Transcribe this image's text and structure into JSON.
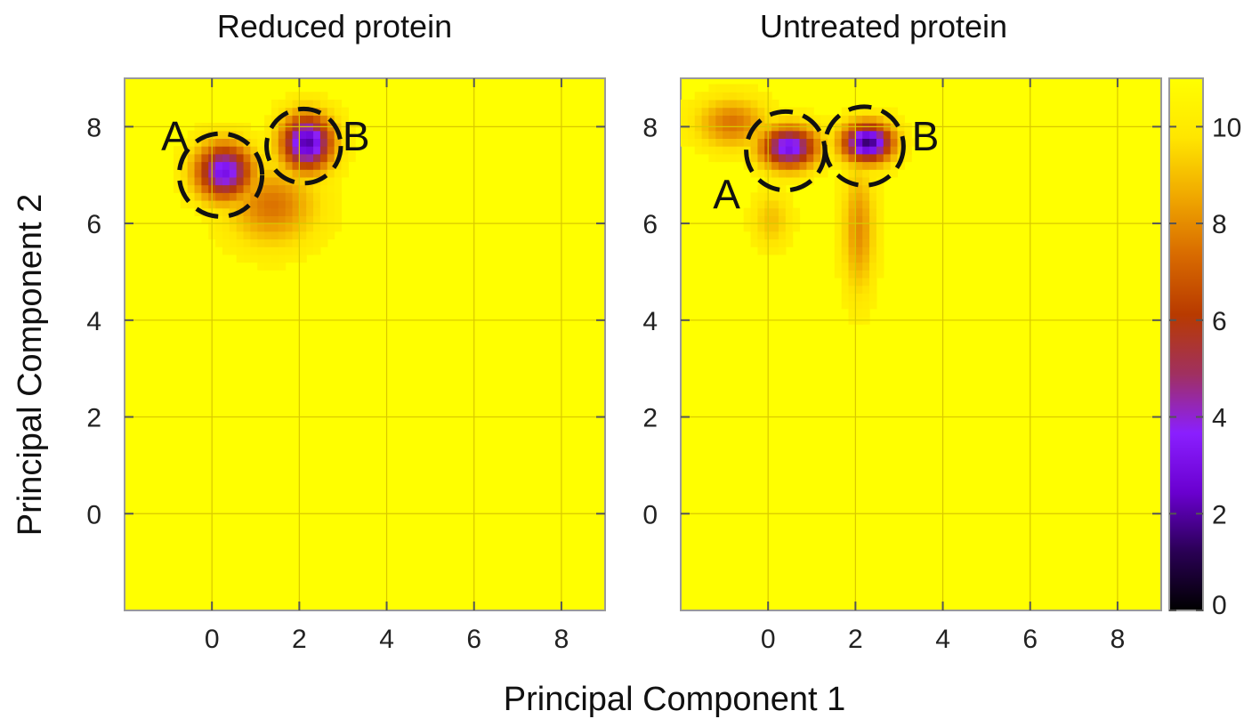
{
  "figure": {
    "xlabel": "Principal Component 1",
    "ylabel": "Principal Component 2"
  },
  "chart_data": [
    {
      "type": "heatmap",
      "title": "Reduced protein",
      "xlabel": "Principal Component 1",
      "ylabel": "Principal Component 2",
      "xlim": [
        -2,
        9
      ],
      "ylim": [
        -2,
        9
      ],
      "x_ticks": [
        0,
        2,
        4,
        6,
        8
      ],
      "y_ticks": [
        0,
        2,
        4,
        6,
        8
      ],
      "grid": true,
      "background_value": 10.5,
      "clusters": [
        {
          "x": 0.2,
          "y": 7.0,
          "sx": 0.45,
          "sy": 0.4,
          "min": 3.0
        },
        {
          "x": 2.1,
          "y": 7.6,
          "sx": 0.4,
          "sy": 0.4,
          "min": 2.0
        },
        {
          "x": 1.3,
          "y": 6.3,
          "sx": 0.7,
          "sy": 0.55,
          "min": 7.5
        }
      ],
      "annotations": [
        {
          "label": "A",
          "x": 0.2,
          "y": 7.0,
          "r": 0.95
        },
        {
          "label": "B",
          "x": 2.1,
          "y": 7.6,
          "r": 0.85
        }
      ],
      "annotation_label_pos": [
        {
          "label": "A",
          "x": -0.85,
          "y": 7.8
        },
        {
          "label": "B",
          "x": 3.3,
          "y": 7.8
        }
      ]
    },
    {
      "type": "heatmap",
      "title": "Untreated protein",
      "xlabel": "Principal Component 1",
      "ylabel": "Principal Component 2",
      "xlim": [
        -2,
        9
      ],
      "ylim": [
        -2,
        9
      ],
      "x_ticks": [
        0,
        2,
        4,
        6,
        8
      ],
      "y_ticks": [
        0,
        2,
        4,
        6,
        8
      ],
      "grid": true,
      "background_value": 10.5,
      "clusters": [
        {
          "x": 0.4,
          "y": 7.5,
          "sx": 0.45,
          "sy": 0.3,
          "min": 3.0
        },
        {
          "x": 2.2,
          "y": 7.6,
          "sx": 0.4,
          "sy": 0.28,
          "min": 1.5
        },
        {
          "x": -0.9,
          "y": 8.0,
          "sx": 0.55,
          "sy": 0.35,
          "min": 7.5
        },
        {
          "x": 2.0,
          "y": 5.8,
          "sx": 0.25,
          "sy": 0.9,
          "min": 8.0
        },
        {
          "x": 0.0,
          "y": 6.0,
          "sx": 0.3,
          "sy": 0.4,
          "min": 9.0
        }
      ],
      "annotations": [
        {
          "label": "A",
          "x": 0.4,
          "y": 7.5,
          "r": 0.9
        },
        {
          "label": "B",
          "x": 2.2,
          "y": 7.6,
          "r": 0.9
        }
      ],
      "annotation_label_pos": [
        {
          "label": "A",
          "x": -0.95,
          "y": 6.6
        },
        {
          "label": "B",
          "x": 3.6,
          "y": 7.8
        }
      ]
    }
  ],
  "colorbar": {
    "range": [
      0,
      11
    ],
    "ticks": [
      "0",
      "2",
      "4",
      "6",
      "8",
      "10"
    ],
    "tick_values": [
      0,
      2,
      4,
      6,
      8,
      10
    ],
    "colors": [
      "#000000",
      "#2a0055",
      "#6a00d0",
      "#8a1fff",
      "#a03060",
      "#b83a00",
      "#d86a00",
      "#f0a800",
      "#ffe600",
      "#ffff00"
    ]
  }
}
